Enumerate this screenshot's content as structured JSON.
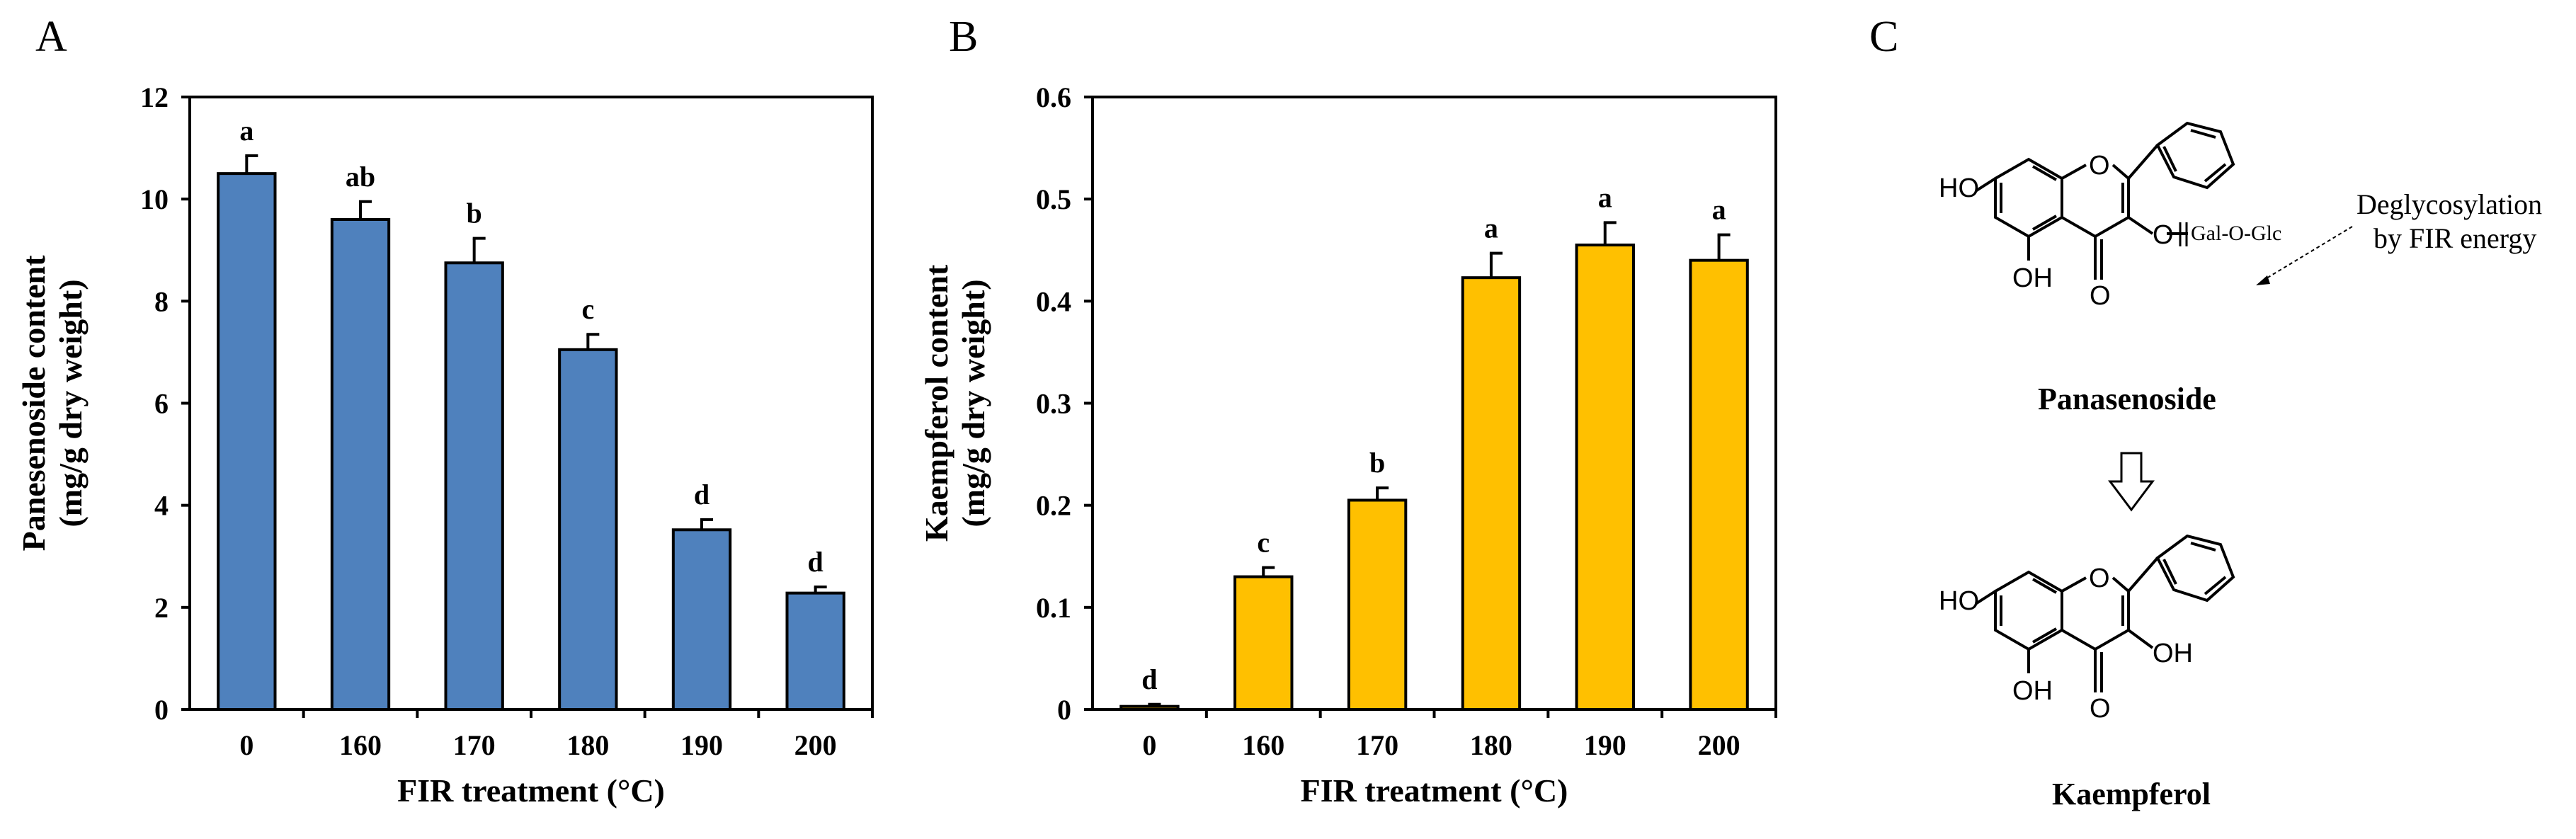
{
  "panels": {
    "A": {
      "letter": "A",
      "chart_data": {
        "type": "bar",
        "title": "",
        "categories": [
          "0",
          "160",
          "170",
          "180",
          "190",
          "200"
        ],
        "values": [
          10.5,
          9.6,
          8.75,
          7.05,
          3.52,
          2.28
        ],
        "errors": [
          0.35,
          0.35,
          0.48,
          0.3,
          0.2,
          0.12
        ],
        "significance": [
          "a",
          "ab",
          "b",
          "c",
          "d",
          "d"
        ],
        "xlabel": "FIR treatment (°C)",
        "ylabel_line1": "Panesenoside content",
        "ylabel_line2": "(mg/g dry weight)",
        "ylim": [
          0,
          12
        ],
        "yticks": [
          0,
          2,
          4,
          6,
          8,
          10,
          12
        ],
        "ytick_labels": [
          "0",
          "2",
          "4",
          "6",
          "8",
          "10",
          "12"
        ],
        "bar_color": "#4f81bd",
        "grid": false
      }
    },
    "B": {
      "letter": "B",
      "chart_data": {
        "type": "bar",
        "title": "",
        "categories": [
          "0",
          "160",
          "170",
          "180",
          "190",
          "200"
        ],
        "values": [
          0.003,
          0.13,
          0.205,
          0.423,
          0.455,
          0.44
        ],
        "errors": [
          0.002,
          0.009,
          0.012,
          0.024,
          0.022,
          0.025
        ],
        "significance": [
          "d",
          "c",
          "b",
          "a",
          "a",
          "a"
        ],
        "xlabel": "FIR treatment (°C)",
        "ylabel_line1": "Kaempferol content",
        "ylabel_line2": "(mg/g dry weight)",
        "ylim": [
          0,
          0.6
        ],
        "yticks": [
          0,
          0.1,
          0.2,
          0.3,
          0.4,
          0.5,
          0.6
        ],
        "ytick_labels": [
          "0",
          "0.1",
          "0.2",
          "0.3",
          "0.4",
          "0.5",
          "0.6"
        ],
        "bar_color": "#ffc000",
        "grid": false
      }
    },
    "C": {
      "letter": "C",
      "top_compound": "Panasenoside",
      "bottom_compound": "Kaempferol",
      "annotation_line1": "Deglycosylation",
      "annotation_line2": "by FIR energy",
      "labels": {
        "ho": "HO",
        "oh": "OH",
        "ring_o": "O",
        "carbonyl_o": "O",
        "glycoside_o": "O",
        "sugar": "Gal-O-Glc"
      }
    }
  }
}
